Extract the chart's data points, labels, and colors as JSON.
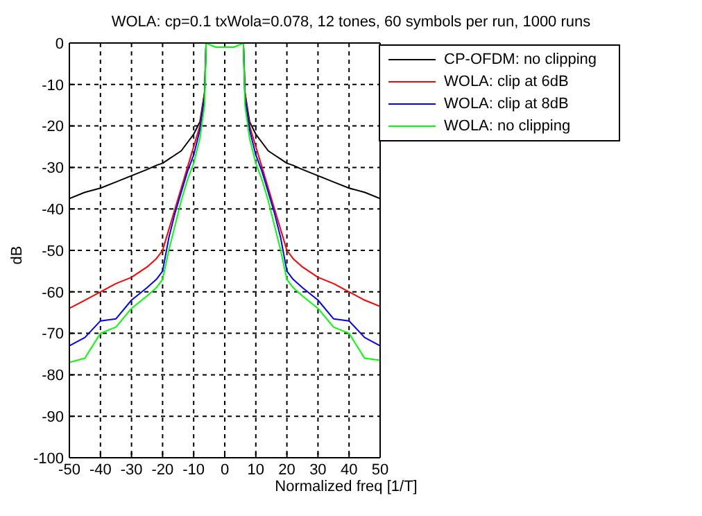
{
  "chart_data": {
    "type": "line",
    "title": "WOLA: cp=0.1 txWola=0.078, 12 tones, 60 symbols per run, 1000 runs",
    "xlabel": "Normalized freq [1/T]",
    "ylabel": "dB",
    "x": [
      -50,
      -45,
      -40,
      -35,
      -30,
      -25,
      -22,
      -20,
      -18,
      -16,
      -14,
      -12,
      -10,
      -8,
      -6.5,
      -6,
      -3,
      0,
      3,
      6,
      6.5,
      8,
      10,
      12,
      14,
      16,
      18,
      20,
      22,
      25,
      30,
      35,
      40,
      45,
      50
    ],
    "series": [
      {
        "name": "CP-OFDM: no clipping",
        "color": "#000000",
        "values": [
          -37.5,
          -36,
          -35,
          -33.5,
          -32,
          -30.5,
          -29.5,
          -29,
          -28,
          -27,
          -26,
          -24,
          -22,
          -19,
          -12,
          0,
          null,
          null,
          null,
          0,
          -12,
          -19,
          -22,
          -24,
          -26,
          -27,
          -28,
          -29,
          -29.5,
          -30.5,
          -32,
          -33.5,
          -35,
          -36,
          -37.5
        ]
      },
      {
        "name": "WOLA: clip at 6dB",
        "color": "#ff0000",
        "values": [
          -64,
          -62,
          -60,
          -58,
          -56.5,
          -54,
          -52,
          -50,
          -45,
          -40,
          -35,
          -30,
          -25,
          -20,
          -12,
          0,
          null,
          null,
          null,
          0,
          -12,
          -20,
          -25,
          -30,
          -35,
          -40,
          -45,
          -50,
          -52,
          -54,
          -56.5,
          -58,
          -60,
          -62,
          -63.5
        ]
      },
      {
        "name": "WOLA: clip at 8dB",
        "color": "#0000ff",
        "values": [
          -73,
          -71,
          -67,
          -66.5,
          -62,
          -59,
          -57,
          -55,
          -47,
          -41,
          -36,
          -31,
          -27,
          -21,
          -13,
          0,
          null,
          null,
          null,
          0,
          -13,
          -21,
          -27,
          -31,
          -36,
          -41,
          -47,
          -55,
          -57,
          -59,
          -62,
          -66.5,
          -67,
          -71,
          -73
        ]
      },
      {
        "name": "WOLA: no clipping",
        "color": "#00ff00",
        "values": [
          -77,
          -76,
          -70,
          -68.5,
          -64,
          -61,
          -59,
          -57,
          -50,
          -44,
          -38,
          -33,
          -29,
          -23,
          -15,
          0,
          -1,
          -1,
          -1,
          0,
          -15,
          -23,
          -29,
          -33,
          -38,
          -44,
          -50,
          -57,
          -59,
          -61,
          -64,
          -68.5,
          -70,
          -76,
          -76.5
        ]
      }
    ],
    "xlim": [
      -50,
      50
    ],
    "ylim": [
      -100,
      0
    ],
    "xticks": [
      -50,
      -40,
      -30,
      -20,
      -10,
      0,
      10,
      20,
      30,
      40,
      50
    ],
    "yticks": [
      -100,
      -90,
      -80,
      -70,
      -60,
      -50,
      -40,
      -30,
      -20,
      -10,
      0
    ],
    "grid": true,
    "legend": "top right",
    "line_style": "solid",
    "marker": "none"
  }
}
